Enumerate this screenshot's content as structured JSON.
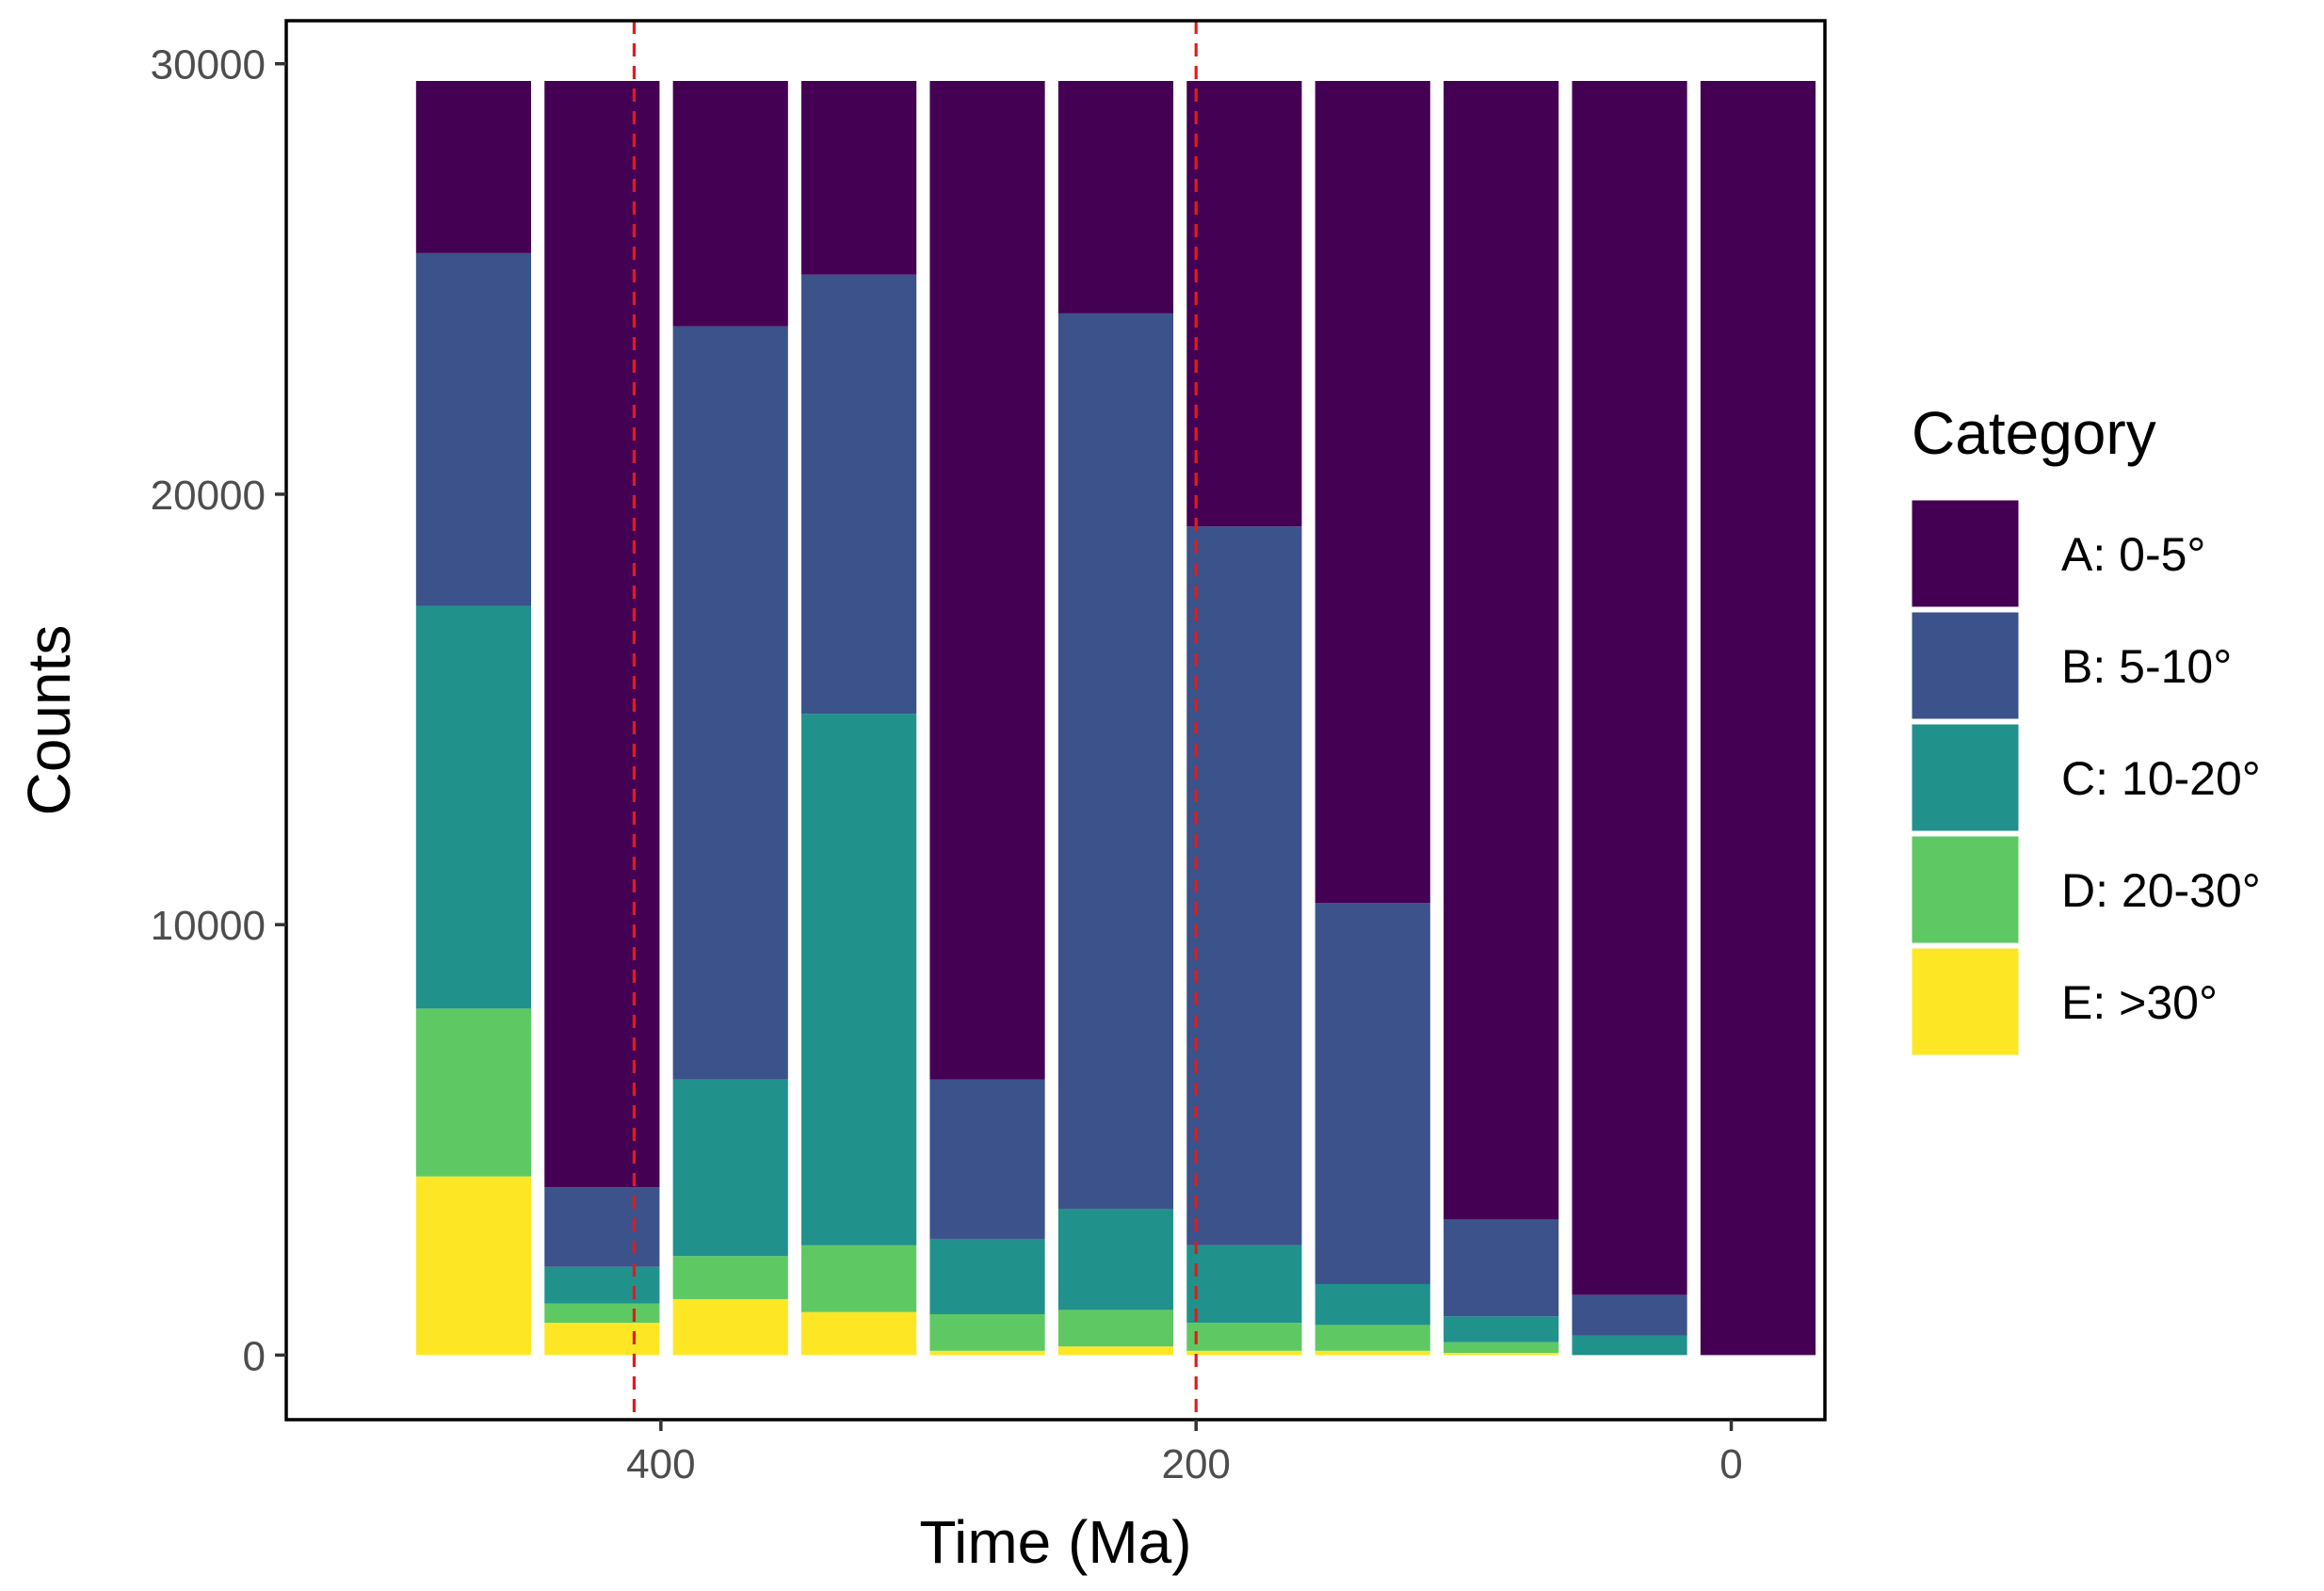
{
  "chart_data": {
    "type": "bar",
    "stacked": true,
    "title": "",
    "xlabel": "Time (Ma)",
    "ylabel": "Counts",
    "x_reversed": true,
    "xlim": [
      -35,
      540
    ],
    "ylim": [
      -1500,
      31000
    ],
    "x_ticks": [
      400,
      200,
      0
    ],
    "y_ticks": [
      0,
      10000,
      20000,
      30000
    ],
    "grid": false,
    "legend_position": "right",
    "legend_title": "Category",
    "bar_width_ma": 43,
    "x": [
      470,
      422,
      374,
      326,
      278,
      230,
      182,
      134,
      86,
      38,
      -10
    ],
    "total": 29600,
    "series": [
      {
        "name": "E: >30°",
        "color": "#FDE725",
        "values": [
          4150,
          750,
          1300,
          1000,
          100,
          200,
          100,
          100,
          50,
          0,
          0
        ]
      },
      {
        "name": "D: 20-30°",
        "color": "#5EC962",
        "values": [
          3900,
          450,
          1000,
          1550,
          850,
          850,
          650,
          600,
          250,
          0,
          0
        ]
      },
      {
        "name": "C: 10-20°",
        "color": "#21918C",
        "values": [
          9350,
          850,
          4100,
          12350,
          1750,
          2350,
          1800,
          950,
          600,
          450,
          0
        ]
      },
      {
        "name": "B: 5-10°",
        "color": "#3B528B",
        "values": [
          8200,
          1850,
          17500,
          10200,
          3700,
          20800,
          16700,
          8850,
          2250,
          950,
          0
        ]
      },
      {
        "name": "A: 0-5°",
        "color": "#440154",
        "values": [
          4000,
          25700,
          5700,
          4500,
          23200,
          5400,
          10350,
          19100,
          26450,
          28200,
          29600
        ]
      }
    ],
    "legend_order": [
      "A: 0-5°",
      "B: 5-10°",
      "C: 10-20°",
      "D: 20-30°",
      "E: >30°"
    ],
    "reference_lines": [
      {
        "axis": "x",
        "value": 410,
        "color": "#E31A1C",
        "style": "dashed"
      },
      {
        "axis": "x",
        "value": 200,
        "color": "#E31A1C",
        "style": "dashed"
      }
    ]
  }
}
